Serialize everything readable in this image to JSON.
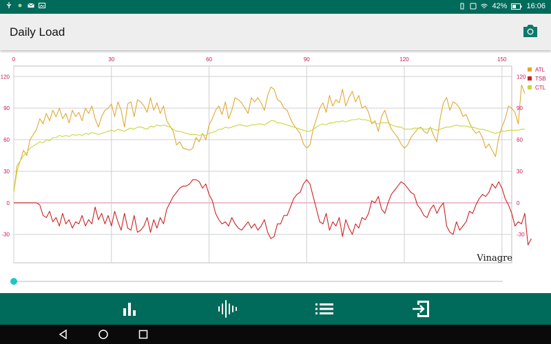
{
  "status_bar": {
    "time": "16:06",
    "battery": "42%",
    "left_icons": [
      "usb-icon",
      "notification-icon",
      "mail-icon",
      "gallery-icon"
    ],
    "right_icons": [
      "vibrate-icon",
      "nfc-icon",
      "wifi-icon",
      "battery-icon"
    ]
  },
  "app_bar": {
    "title": "Daily Load",
    "action_icon": "camera-icon"
  },
  "chart_data": {
    "type": "line",
    "x_top_ticks": [
      "0",
      "30",
      "60",
      "90",
      "120",
      "150"
    ],
    "y_ticks": [
      "120",
      "90",
      "60",
      "30",
      "0",
      "-30"
    ],
    "xlim": [
      0,
      153
    ],
    "ylim": [
      -57,
      130
    ],
    "legend_position": "right",
    "series": [
      {
        "name": "ATL",
        "color": "#e0a832",
        "values": [
          10,
          35,
          40,
          50,
          45,
          60,
          65,
          70,
          80,
          75,
          85,
          78,
          88,
          82,
          90,
          80,
          85,
          76,
          88,
          82,
          86,
          78,
          90,
          85,
          92,
          80,
          72,
          82,
          88,
          90,
          94,
          82,
          96,
          88,
          72,
          94,
          96,
          82,
          98,
          96,
          92,
          86,
          100,
          88,
          95,
          85,
          92,
          78,
          73,
          68,
          55,
          58,
          52,
          51,
          50,
          52,
          62,
          58,
          66,
          60,
          74,
          80,
          88,
          92,
          84,
          96,
          80,
          88,
          100,
          98,
          95,
          90,
          85,
          100,
          96,
          100,
          95,
          88,
          102,
          110,
          108,
          98,
          96,
          90,
          88,
          80,
          74,
          70,
          66,
          56,
          52,
          55,
          70,
          80,
          90,
          95,
          86,
          102,
          92,
          98,
          95,
          108,
          92,
          100,
          106,
          96,
          102,
          90,
          92,
          86,
          75,
          78,
          68,
          82,
          88,
          78,
          70,
          66,
          62,
          56,
          52,
          55,
          62,
          66,
          70,
          72,
          68,
          66,
          72,
          64,
          58,
          80,
          95,
          100,
          88,
          96,
          94,
          90,
          82,
          84,
          76,
          70,
          66,
          68,
          62,
          52,
          56,
          50,
          44,
          62,
          72,
          80,
          92,
          90,
          86,
          75,
          112,
          104
        ]
      },
      {
        "name": "TSB",
        "color": "#cc2020",
        "values": [
          0,
          0,
          0,
          0,
          0,
          0,
          0,
          0,
          -2,
          -12,
          -14,
          -8,
          -18,
          -14,
          -22,
          -10,
          -20,
          -16,
          -24,
          -18,
          -20,
          -12,
          -22,
          -16,
          -20,
          -4,
          -16,
          -10,
          -20,
          -12,
          -22,
          -8,
          -18,
          -26,
          -10,
          -24,
          -26,
          -12,
          -28,
          -26,
          -22,
          -14,
          -28,
          -16,
          -24,
          -14,
          -20,
          -6,
          0,
          6,
          10,
          14,
          16,
          16,
          18,
          22,
          22,
          20,
          14,
          18,
          8,
          2,
          -10,
          -16,
          -20,
          -18,
          -22,
          -14,
          -20,
          -24,
          -26,
          -22,
          -18,
          -24,
          -20,
          -26,
          -22,
          -16,
          -28,
          -34,
          -32,
          -20,
          -20,
          -12,
          -12,
          -4,
          4,
          8,
          10,
          18,
          22,
          18,
          6,
          -6,
          -18,
          -20,
          -10,
          -26,
          -18,
          -22,
          -14,
          -32,
          -16,
          -24,
          -30,
          -20,
          -24,
          -14,
          -16,
          -10,
          2,
          0,
          6,
          -6,
          -10,
          0,
          8,
          12,
          16,
          20,
          18,
          14,
          10,
          8,
          -2,
          -6,
          -12,
          -14,
          -6,
          -2,
          -10,
          -4,
          0,
          -22,
          -28,
          -30,
          -18,
          -26,
          -22,
          -18,
          -8,
          -10,
          -2,
          4,
          8,
          6,
          10,
          18,
          14,
          20,
          14,
          4,
          -2,
          -10,
          -22,
          -18,
          -20,
          -10,
          -40,
          -34
        ]
      },
      {
        "name": "CTL",
        "color": "#c8d63c",
        "values": [
          10,
          30,
          40,
          45,
          48,
          52,
          54,
          56,
          58,
          57,
          60,
          59,
          62,
          62,
          64,
          63,
          64,
          63,
          65,
          64,
          65,
          64,
          66,
          65,
          67,
          66,
          65,
          66,
          67,
          68,
          69,
          68,
          70,
          69,
          68,
          70,
          71,
          70,
          72,
          72,
          71,
          70,
          73,
          72,
          74,
          73,
          74,
          73,
          72,
          70,
          68,
          68,
          67,
          66,
          65,
          65,
          65,
          64,
          65,
          64,
          66,
          67,
          68,
          70,
          70,
          72,
          71,
          72,
          73,
          74,
          74,
          73,
          73,
          74,
          74,
          75,
          75,
          74,
          76,
          78,
          78,
          76,
          76,
          75,
          74,
          73,
          72,
          71,
          70,
          69,
          68,
          68,
          70,
          72,
          74,
          75,
          74,
          76,
          76,
          77,
          77,
          78,
          77,
          78,
          79,
          79,
          80,
          79,
          79,
          78,
          77,
          76,
          75,
          76,
          76,
          76,
          74,
          73,
          72,
          72,
          70,
          70,
          70,
          71,
          71,
          71,
          70,
          70,
          71,
          70,
          69,
          70,
          71,
          72,
          72,
          73,
          74,
          73,
          73,
          73,
          72,
          72,
          71,
          70,
          70,
          69,
          68,
          67,
          66,
          67,
          68,
          68,
          69,
          69,
          69,
          69,
          70,
          70
        ]
      }
    ]
  },
  "watermark": "Vinagre",
  "slider": {
    "value": 0
  },
  "bottom_nav": {
    "items": [
      {
        "icon": "bar-chart-icon"
      },
      {
        "icon": "waveform-icon"
      },
      {
        "icon": "list-icon"
      },
      {
        "icon": "exit-icon"
      }
    ]
  },
  "system_nav": {
    "items": [
      "back-icon",
      "home-icon",
      "recents-icon"
    ]
  }
}
